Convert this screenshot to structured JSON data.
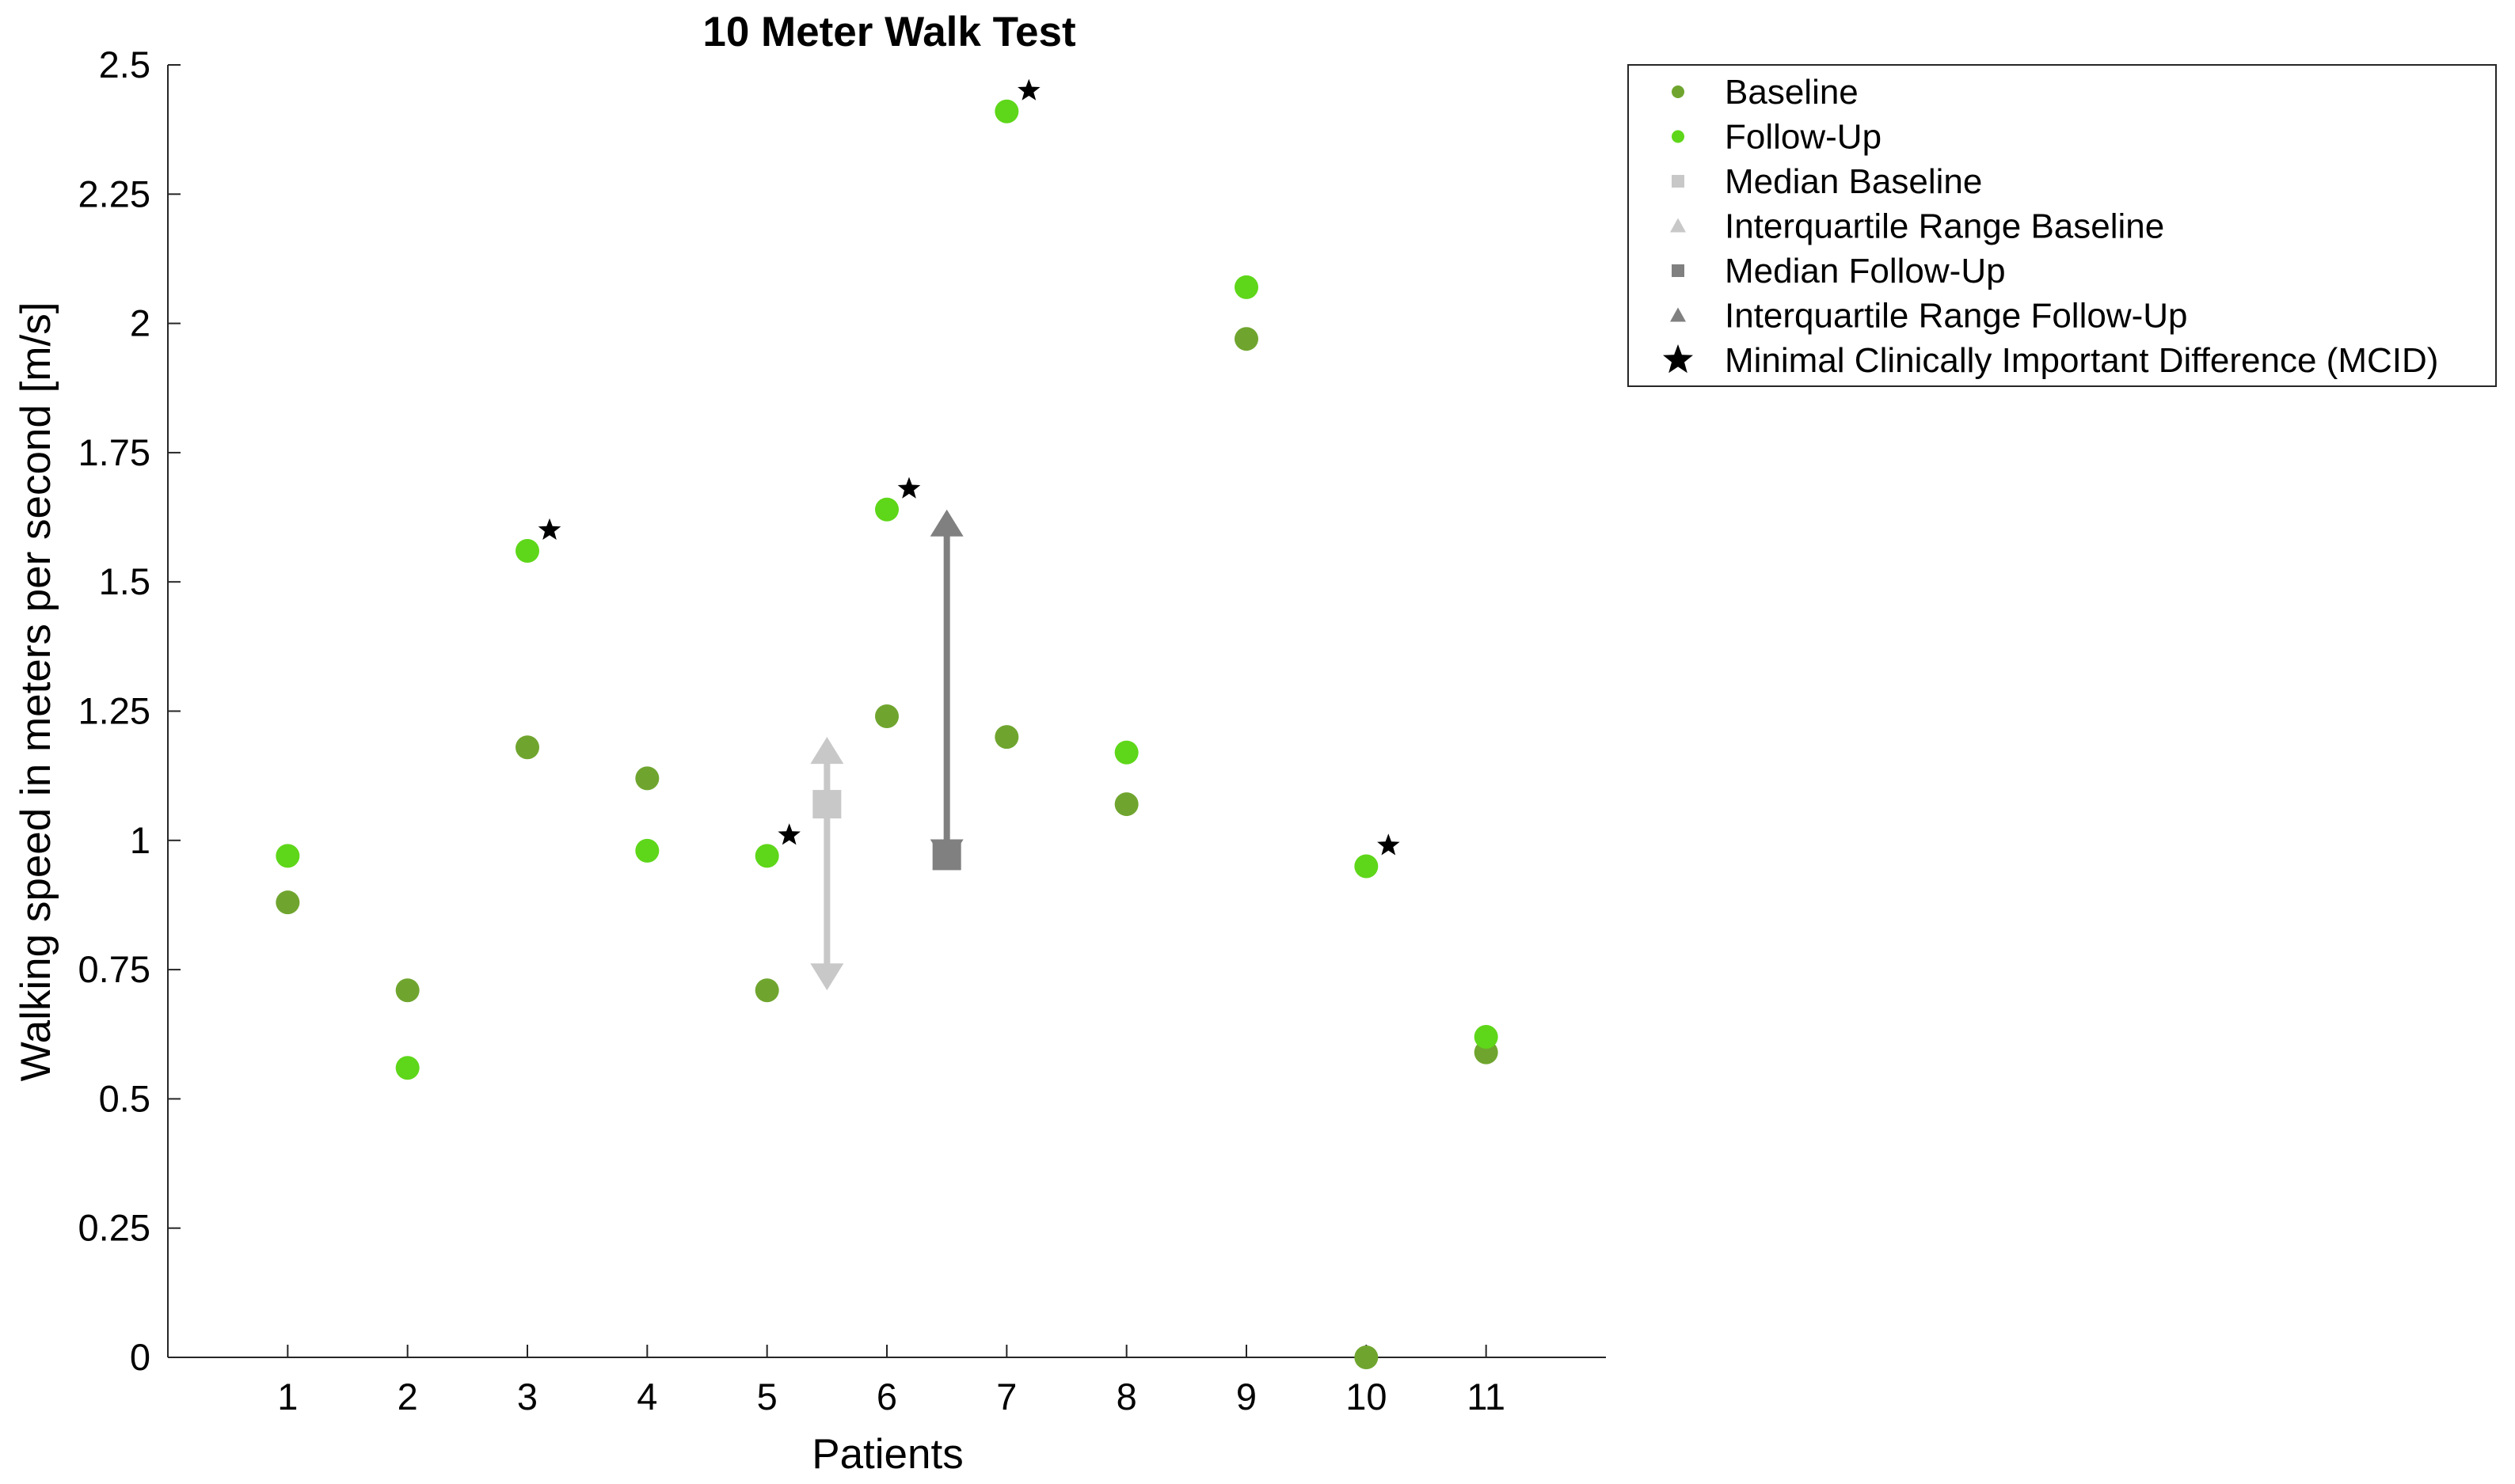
{
  "chart_data": {
    "type": "scatter",
    "title": "10 Meter Walk Test",
    "xlabel": "Patients",
    "ylabel": "Walking speed in meters per second [m/s]",
    "xlim": [
      0,
      12
    ],
    "ylim": [
      0,
      2.5
    ],
    "xticks": [
      "1",
      "2",
      "3",
      "4",
      "5",
      "6",
      "7",
      "8",
      "9",
      "10",
      "11"
    ],
    "yticks": [
      "0",
      "0.25",
      "0.5",
      "0.75",
      "1",
      "1.25",
      "1.5",
      "1.75",
      "2",
      "2.25",
      "2.5"
    ],
    "grid": false,
    "legend_position": "top-right outside",
    "series": [
      {
        "name": "Baseline",
        "color": "#6fa52e",
        "marker": "circle",
        "x": [
          1,
          2,
          3,
          4,
          5,
          6,
          7,
          8,
          9,
          10,
          11
        ],
        "y": [
          0.88,
          0.71,
          1.18,
          1.12,
          0.71,
          1.24,
          1.2,
          1.07,
          1.97,
          0.0,
          0.59
        ]
      },
      {
        "name": "Follow-Up",
        "color": "#5ed619",
        "marker": "circle",
        "x": [
          1,
          2,
          3,
          4,
          5,
          6,
          7,
          8,
          9,
          10,
          11
        ],
        "y": [
          0.97,
          0.56,
          1.56,
          0.98,
          0.97,
          1.64,
          2.41,
          1.17,
          2.07,
          0.95,
          0.62
        ]
      }
    ],
    "median_baseline": {
      "name": "Median Baseline",
      "x": 5.5,
      "y": 1.07,
      "color": "#c8c8c8"
    },
    "iqr_baseline": {
      "name": "Interquartile Range Baseline",
      "x": 5.5,
      "low": 0.71,
      "high": 1.2,
      "color": "#c8c8c8"
    },
    "median_followup": {
      "name": "Median Follow-Up",
      "x": 6.5,
      "y": 0.97,
      "color": "#808080"
    },
    "iqr_followup": {
      "name": "Interquartile Range Follow-Up",
      "x": 6.5,
      "low": 0.95,
      "high": 1.64,
      "color": "#808080"
    },
    "mcid": {
      "name": "Minimal Clinically Important Difference (MCID)",
      "color": "#000000",
      "patients": [
        3,
        5,
        6,
        7,
        10
      ],
      "y": [
        1.6,
        1.01,
        1.68,
        2.45,
        0.99
      ]
    }
  }
}
